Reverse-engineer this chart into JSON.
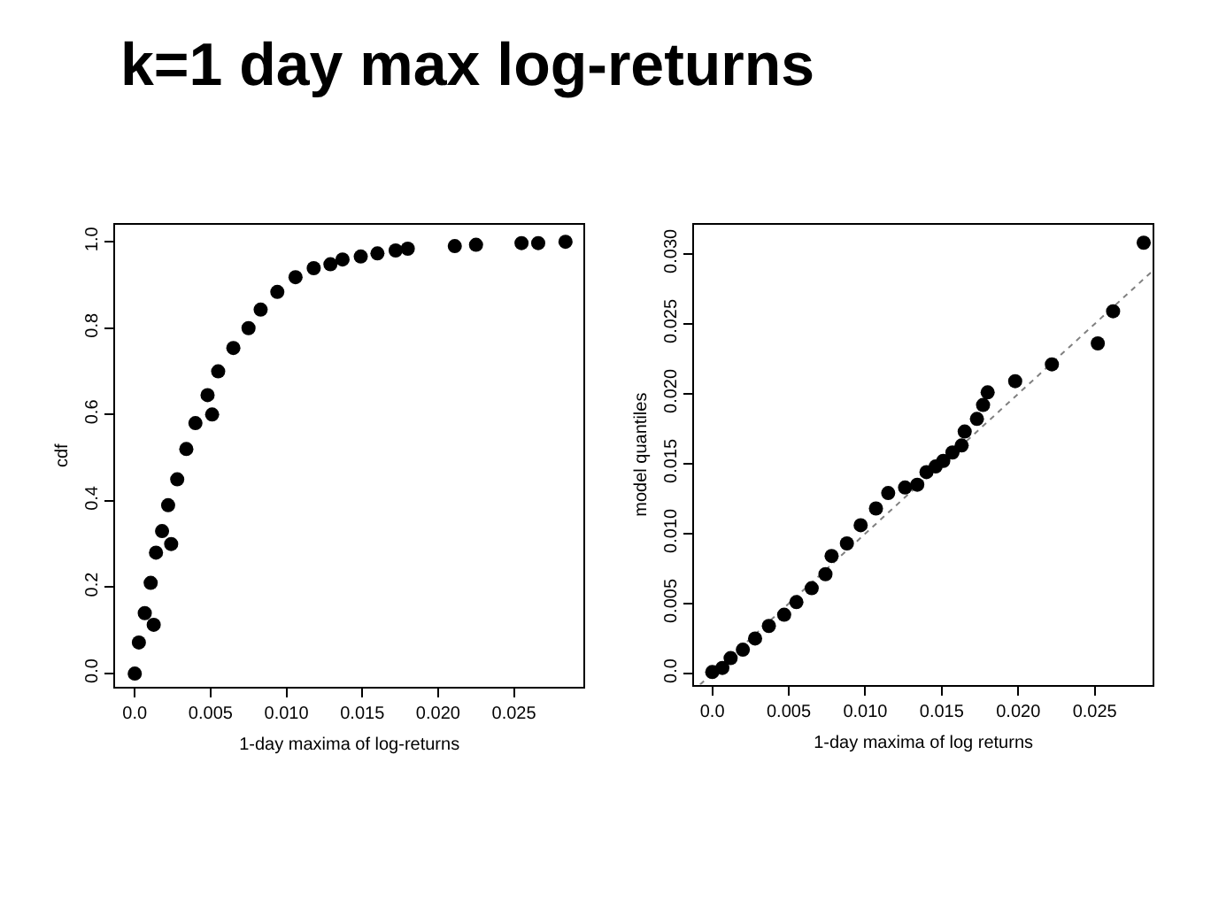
{
  "chart_data": [
    {
      "type": "scatter",
      "title": "k=1 day max log-returns",
      "xlabel": "1-day maxima of log-returns",
      "ylabel": "cdf",
      "marker": "circle",
      "xlim": [
        -0.0013,
        0.0296
      ],
      "xticks": [
        {
          "value": 0,
          "label": "0.0"
        },
        0.005,
        {
          "value": 0.01,
          "label": "0.010"
        },
        0.015,
        {
          "value": 0.02,
          "label": "0.020"
        },
        0.025
      ],
      "ylim": [
        -0.03,
        1.04
      ],
      "yticks": [
        {
          "value": 0,
          "label": "0.0"
        },
        0.2,
        0.4,
        0.6,
        0.8,
        {
          "value": 1,
          "label": "1.0"
        }
      ],
      "series": [
        {
          "color": "#000000",
          "x": [
            0,
            0.00027,
            0.00066,
            0.00105,
            0.00125,
            0.0014,
            0.0018,
            0.0022,
            0.0024,
            0.0028,
            0.0034,
            0.004,
            0.0048,
            0.0051,
            0.0055,
            0.0065,
            0.0075,
            0.0083,
            0.0094,
            0.0106,
            0.0118,
            0.0129,
            0.0137,
            0.0149,
            0.016,
            0.0172,
            0.018,
            0.0211,
            0.0225,
            0.0255,
            0.0266,
            0.0284
          ],
          "values": [
            0,
            0.072,
            0.14,
            0.21,
            0.113,
            0.28,
            0.33,
            0.39,
            0.3,
            0.45,
            0.52,
            0.58,
            0.645,
            0.6,
            0.7,
            0.754,
            0.8,
            0.843,
            0.884,
            0.918,
            0.939,
            0.948,
            0.959,
            0.966,
            0.973,
            0.98,
            0.984,
            0.99,
            0.993,
            0.997,
            0.997,
            1.0
          ]
        }
      ]
    },
    {
      "type": "scatter",
      "xlabel": "1-day maxima of log returns",
      "ylabel": "model quantiles",
      "marker": "circle",
      "xlim": [
        -0.0012,
        0.0288
      ],
      "xticks": [
        {
          "value": 0,
          "label": "0.0"
        },
        0.005,
        {
          "value": 0.01,
          "label": "0.010"
        },
        0.015,
        {
          "value": 0.02,
          "label": "0.020"
        },
        0.025
      ],
      "ylim": [
        -0.0008,
        0.0321
      ],
      "yticks": [
        {
          "value": 0,
          "label": "0.0"
        },
        0.005,
        {
          "value": 0.01,
          "label": "0.010"
        },
        0.015,
        {
          "value": 0.02,
          "label": "0.020"
        },
        0.025,
        {
          "value": 0.03,
          "label": "0.030"
        }
      ],
      "series": [
        {
          "type": "line",
          "marker": "none",
          "line_style": "dotted",
          "color": "#808080",
          "x": [
            -0.0008,
            0.0288
          ],
          "values": [
            -0.0008,
            0.0288
          ]
        },
        {
          "color": "#000000",
          "x": [
            0,
            0.00066,
            0.0012,
            0.002,
            0.0028,
            0.0037,
            0.0047,
            0.0055,
            0.0065,
            0.0074,
            0.0078,
            0.0088,
            0.0097,
            0.0107,
            0.0115,
            0.0126,
            0.0134,
            0.014,
            0.0146,
            0.0151,
            0.0157,
            0.0163,
            0.0165,
            0.0173,
            0.0177,
            0.018,
            0.0198,
            0.0222,
            0.0252,
            0.0262,
            0.0282
          ],
          "values": [
            0.0001,
            0.0004,
            0.0011,
            0.0017,
            0.0025,
            0.0034,
            0.0042,
            0.0051,
            0.0061,
            0.0071,
            0.0084,
            0.0093,
            0.0106,
            0.0118,
            0.0129,
            0.0133,
            0.0135,
            0.0144,
            0.0148,
            0.0152,
            0.0158,
            0.0163,
            0.0173,
            0.0182,
            0.0192,
            0.0201,
            0.0209,
            0.0221,
            0.0236,
            0.0259,
            0.0308
          ]
        }
      ]
    }
  ]
}
